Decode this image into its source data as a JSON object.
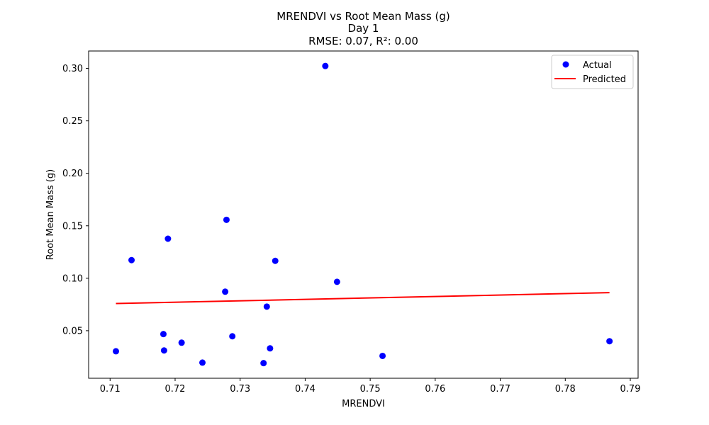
{
  "chart_data": {
    "type": "scatter",
    "title_lines": [
      "MRENDVI vs Root Mean Mass (g)",
      "Day 1",
      "RMSE: 0.07, R²: 0.00"
    ],
    "xlabel": "MRENDVI",
    "ylabel": "Root Mean Mass (g)",
    "xlim": [
      0.7067,
      0.7912
    ],
    "ylim": [
      0.0047,
      0.3166
    ],
    "xticks": [
      0.71,
      0.72,
      0.73,
      0.74,
      0.75,
      0.76,
      0.77,
      0.78,
      0.79
    ],
    "xtick_labels": [
      "0.71",
      "0.72",
      "0.73",
      "0.74",
      "0.75",
      "0.76",
      "0.77",
      "0.78",
      "0.79"
    ],
    "yticks": [
      0.05,
      0.1,
      0.15,
      0.2,
      0.25,
      0.3
    ],
    "ytick_labels": [
      "0.05",
      "0.10",
      "0.15",
      "0.20",
      "0.25",
      "0.30"
    ],
    "grid": false,
    "legend_position": "top-right",
    "series": [
      {
        "name": "Actual",
        "kind": "points",
        "color": "#0000ff",
        "points": [
          [
            0.7109,
            0.0304
          ],
          [
            0.7133,
            0.1173
          ],
          [
            0.7182,
            0.0468
          ],
          [
            0.7183,
            0.0312
          ],
          [
            0.7189,
            0.1377
          ],
          [
            0.721,
            0.0386
          ],
          [
            0.7242,
            0.0196
          ],
          [
            0.7277,
            0.0872
          ],
          [
            0.7279,
            0.1557
          ],
          [
            0.7288,
            0.0447
          ],
          [
            0.7336,
            0.0191
          ],
          [
            0.7341,
            0.073
          ],
          [
            0.7346,
            0.0332
          ],
          [
            0.7354,
            0.1166
          ],
          [
            0.7431,
            0.3023
          ],
          [
            0.7449,
            0.0966
          ],
          [
            0.7519,
            0.026
          ],
          [
            0.7868,
            0.04
          ]
        ]
      },
      {
        "name": "Predicted",
        "kind": "line",
        "color": "#ff0000",
        "points": [
          [
            0.7109,
            0.0759
          ],
          [
            0.7868,
            0.0863
          ]
        ]
      }
    ]
  }
}
